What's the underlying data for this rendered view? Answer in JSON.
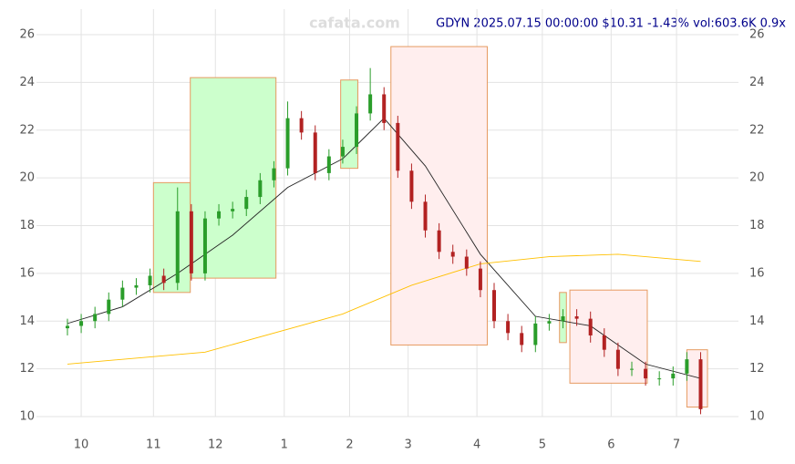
{
  "chart_data": {
    "type": "candlestick",
    "title": "GDYN 2025.07.15 00:00:00 $10.31 -1.43% vol:603.6K 0.9x",
    "watermark": "cafata.com",
    "x": [
      0,
      4,
      8,
      12,
      16,
      20,
      24,
      28,
      32,
      36,
      40,
      44,
      48,
      52,
      56,
      60,
      64,
      68,
      72,
      76,
      80,
      84,
      88,
      92,
      96,
      100,
      104,
      108,
      112,
      116,
      120,
      124,
      128,
      132,
      136,
      140,
      144,
      148,
      152,
      156,
      160,
      164,
      168,
      172,
      176,
      180,
      184
    ],
    "open": [
      13.7,
      13.8,
      14.0,
      14.3,
      14.9,
      15.4,
      15.5,
      15.9,
      15.6,
      18.6,
      16.0,
      18.3,
      18.6,
      18.7,
      19.2,
      19.9,
      20.4,
      22.5,
      21.9,
      20.2,
      20.9,
      21.3,
      22.7,
      23.5,
      22.3,
      20.3,
      19.0,
      17.8,
      16.9,
      16.7,
      16.2,
      15.3,
      14.0,
      13.5,
      13.0,
      13.9,
      14.0,
      14.2,
      14.1,
      13.4,
      12.8,
      12.0,
      12.0,
      11.6,
      11.6,
      11.8,
      12.4
    ],
    "high": [
      14.1,
      14.3,
      14.6,
      15.2,
      15.7,
      15.8,
      16.2,
      16.2,
      19.6,
      18.9,
      18.6,
      18.9,
      19.0,
      19.5,
      20.2,
      20.7,
      23.2,
      22.8,
      22.2,
      21.2,
      21.6,
      23.0,
      24.6,
      23.8,
      22.6,
      20.6,
      19.3,
      18.1,
      17.2,
      17.0,
      16.5,
      15.6,
      14.3,
      13.8,
      14.2,
      14.3,
      14.5,
      14.5,
      14.4,
      13.7,
      13.1,
      12.3,
      12.3,
      11.9,
      12.1,
      12.7,
      12.7
    ],
    "low": [
      13.4,
      13.5,
      13.7,
      14.0,
      14.6,
      15.1,
      15.2,
      15.3,
      15.3,
      15.7,
      15.7,
      18.0,
      18.3,
      18.4,
      18.9,
      19.6,
      20.1,
      21.6,
      19.9,
      19.9,
      20.6,
      21.0,
      22.4,
      22.0,
      20.0,
      18.7,
      17.5,
      16.6,
      16.4,
      15.9,
      15.0,
      13.7,
      13.2,
      12.7,
      12.7,
      13.6,
      13.7,
      13.8,
      13.1,
      12.5,
      11.7,
      11.7,
      11.3,
      11.3,
      11.3,
      11.5,
      10.1
    ],
    "close": [
      13.8,
      14.0,
      14.3,
      14.9,
      15.4,
      15.5,
      15.9,
      15.6,
      18.6,
      16.0,
      18.3,
      18.6,
      18.7,
      19.2,
      19.9,
      20.4,
      22.5,
      21.9,
      20.2,
      20.9,
      21.3,
      22.7,
      23.5,
      22.3,
      20.3,
      19.0,
      17.8,
      16.9,
      16.7,
      16.2,
      15.3,
      14.0,
      13.5,
      13.0,
      13.9,
      14.0,
      14.2,
      14.1,
      13.4,
      12.8,
      12.0,
      12.0,
      11.6,
      11.6,
      11.8,
      12.4,
      10.31
    ],
    "up_color": "#2a9d2a",
    "down_color": "#b22222",
    "lines": [
      {
        "color": "#222222",
        "x": [
          0,
          16,
          32,
          48,
          64,
          80,
          92,
          104,
          120,
          136,
          152,
          168,
          184
        ],
        "values": [
          13.9,
          14.6,
          16.0,
          17.6,
          19.6,
          20.8,
          22.5,
          20.5,
          16.8,
          14.2,
          13.8,
          12.2,
          11.6
        ]
      },
      {
        "color": "#ffc000",
        "x": [
          0,
          40,
          80,
          100,
          120,
          140,
          160,
          184
        ],
        "values": [
          12.2,
          12.7,
          14.3,
          15.5,
          16.4,
          16.7,
          16.8,
          16.5
        ]
      }
    ],
    "boxes": [
      {
        "x0": 25,
        "x1": 35.7,
        "y0": 15.2,
        "y1": 19.8,
        "color": "#ccffcc"
      },
      {
        "x0": 35.7,
        "x1": 60.6,
        "y0": 15.8,
        "y1": 24.2,
        "color": "#ccffcc"
      },
      {
        "x0": 79.4,
        "x1": 84.4,
        "y0": 20.4,
        "y1": 24.1,
        "color": "#ccffcc"
      },
      {
        "x0": 94,
        "x1": 122,
        "y0": 13.0,
        "y1": 25.5,
        "color": "#ffeeee"
      },
      {
        "x0": 143,
        "x1": 145,
        "y0": 13.1,
        "y1": 15.2,
        "color": "#ccffcc"
      },
      {
        "x0": 146,
        "x1": 168.5,
        "y0": 11.4,
        "y1": 15.3,
        "color": "#ffeeee"
      },
      {
        "x0": 180,
        "x1": 186,
        "y0": 10.4,
        "y1": 12.8,
        "color": "#ffeeee"
      }
    ],
    "xlim": [
      -9,
      195
    ],
    "ylim": [
      10,
      26
    ],
    "xticks": [
      {
        "value": 4,
        "label": "10"
      },
      {
        "value": 25,
        "label": "11"
      },
      {
        "value": 43,
        "label": "12"
      },
      {
        "value": 63,
        "label": "1"
      },
      {
        "value": 82,
        "label": "2"
      },
      {
        "value": 99,
        "label": "3"
      },
      {
        "value": 119,
        "label": "4"
      },
      {
        "value": 138,
        "label": "5"
      },
      {
        "value": 158,
        "label": "6"
      },
      {
        "value": 177,
        "label": "7"
      }
    ],
    "yticks": [
      10,
      12,
      14,
      16,
      18,
      20,
      22,
      24,
      26
    ],
    "grid": true
  }
}
